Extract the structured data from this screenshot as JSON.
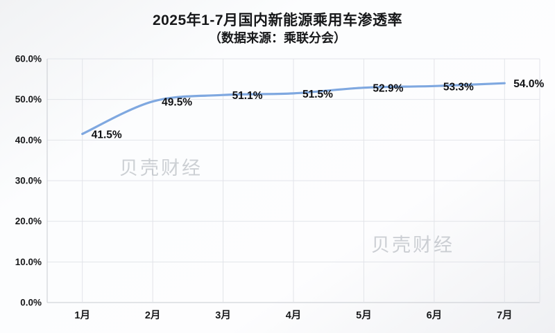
{
  "page": {
    "title": "2025年1-7月国内新能源乘用车渗透率",
    "subtitle": "（数据来源：乘联分会）"
  },
  "watermark": "贝壳财经",
  "chart_data": {
    "type": "line",
    "title": "2025年1-7月国内新能源乘用车渗透率",
    "subtitle": "（数据来源：乘联分会）",
    "categories": [
      "1月",
      "2月",
      "3月",
      "4月",
      "5月",
      "6月",
      "7月"
    ],
    "values": [
      41.5,
      49.5,
      51.1,
      51.5,
      52.9,
      53.3,
      54.0
    ],
    "value_labels": [
      "41.5%",
      "49.5%",
      "51.1%",
      "51.5%",
      "52.9%",
      "53.3%",
      "54.0%"
    ],
    "xlabel": "",
    "ylabel": "",
    "ylim": [
      0,
      60
    ],
    "y_tick_labels": [
      "0.0%",
      "10.0%",
      "20.0%",
      "30.0%",
      "40.0%",
      "50.0%",
      "60.0%"
    ],
    "grid": true,
    "legend": "none",
    "smooth": true,
    "colors": {
      "line": "#7fa8e0",
      "grid": "#e2e4e9",
      "axis": "#c7cad0",
      "label": "#121316",
      "watermark": "#9aa0a8"
    }
  }
}
